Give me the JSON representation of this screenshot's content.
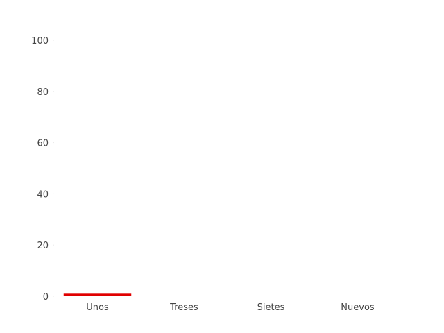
{
  "chart_data": {
    "type": "bar",
    "categories": [
      "Unos",
      "Treses",
      "Sietes",
      "Nuevos"
    ],
    "values": [
      1,
      0,
      0,
      0
    ],
    "ylim": [
      0,
      100
    ],
    "yticks": [
      "0",
      "20",
      "40",
      "60",
      "80",
      "100"
    ],
    "grid": false,
    "legend": "none",
    "colors": {
      "bar": "#e00000"
    }
  }
}
